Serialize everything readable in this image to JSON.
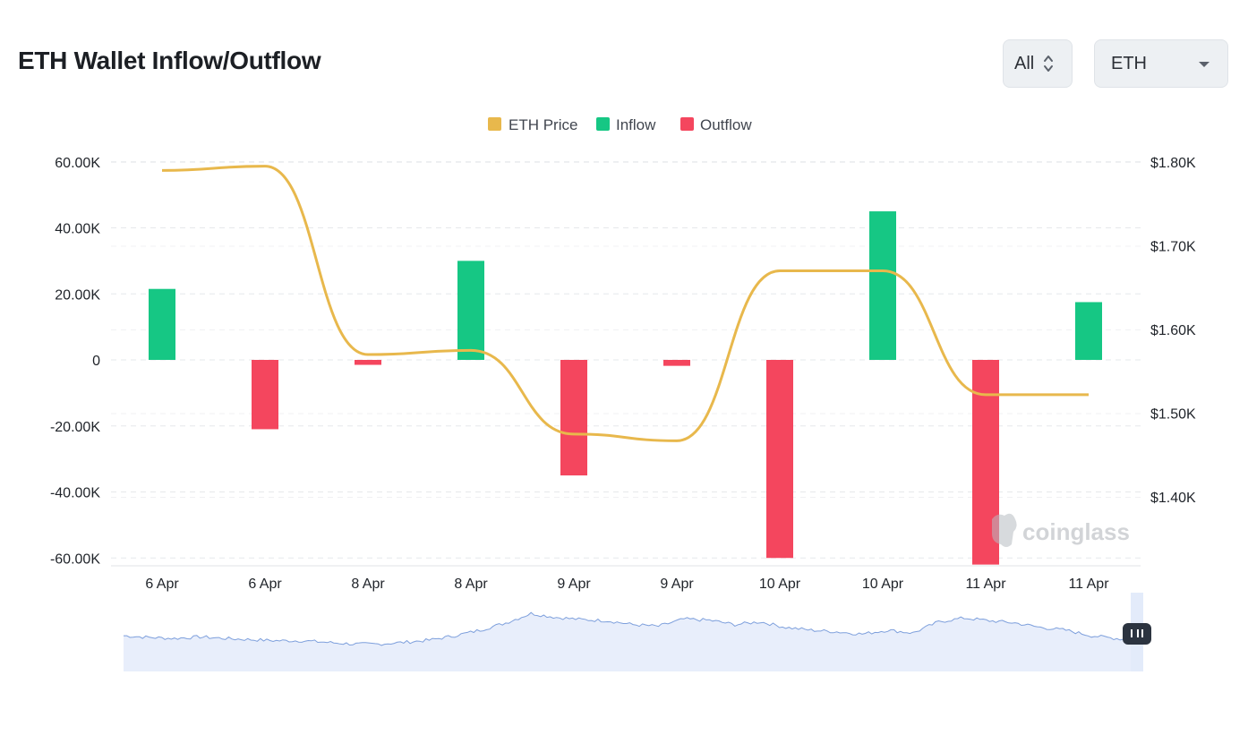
{
  "header": {
    "title": "ETH Wallet Inflow/Outflow",
    "range_select": "All",
    "coin_select": "ETH"
  },
  "watermark": "coinglass",
  "colors": {
    "price": "#e8b84c",
    "inflow": "#16c784",
    "outflow": "#f4465e",
    "navigator": "#7d9fdc"
  },
  "chart_data": {
    "type": "bar",
    "legend": [
      "ETH Price",
      "Inflow",
      "Outflow"
    ],
    "legend_position": "top-center",
    "categories": [
      "6 Apr",
      "6 Apr",
      "8 Apr",
      "8 Apr",
      "9 Apr",
      "9 Apr",
      "10 Apr",
      "10 Apr",
      "11 Apr",
      "11 Apr"
    ],
    "series": [
      {
        "name": "Inflow",
        "axis": "left",
        "values": [
          21500,
          0,
          0,
          30000,
          0,
          0,
          0,
          45000,
          0,
          17500
        ]
      },
      {
        "name": "Outflow",
        "axis": "left",
        "values": [
          0,
          -21000,
          -1500,
          0,
          -35000,
          -1800,
          -60000,
          0,
          -62000,
          0
        ]
      },
      {
        "name": "ETH Price",
        "axis": "right",
        "type": "line",
        "values": [
          1790,
          1795,
          1570,
          1575,
          1475,
          1467,
          1670,
          1670,
          1522,
          1522
        ]
      }
    ],
    "y_left": {
      "ticks": [
        60000,
        40000,
        20000,
        0,
        -20000,
        -40000,
        -60000
      ],
      "tick_labels": [
        "60.00K",
        "40.00K",
        "20.00K",
        "0",
        "-20.00K",
        "-40.00K",
        "-60.00K"
      ],
      "range": [
        -62500,
        62500
      ]
    },
    "y_right": {
      "ticks": [
        1800,
        1700,
        1600,
        1500,
        1400
      ],
      "tick_labels": [
        "$1.80K",
        "$1.70K",
        "$1.60K",
        "$1.50K",
        "$1.40K"
      ],
      "range": [
        1300,
        1800
      ]
    },
    "grid": true,
    "navigator": true
  }
}
